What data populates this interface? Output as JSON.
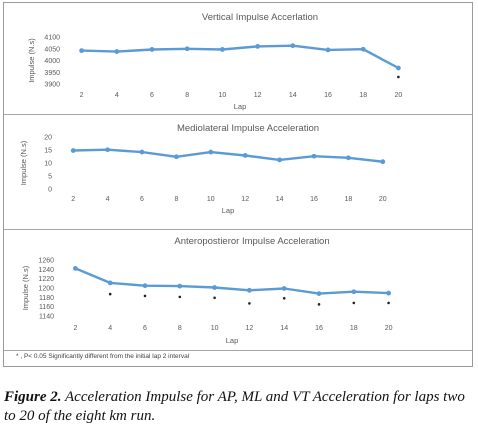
{
  "chart_data": [
    {
      "type": "line",
      "title": "Vertical Impulse Accerlation",
      "ylabel": "Impulse (N.s)",
      "xlabel": "Lap",
      "x": [
        2,
        4,
        6,
        8,
        10,
        12,
        14,
        16,
        18,
        20
      ],
      "y_ticks": [
        3900,
        3950,
        4000,
        4050,
        4100
      ],
      "ylim": [
        3900,
        4100
      ],
      "series": [
        {
          "values": [
            4042,
            4038,
            4047,
            4050,
            4047,
            4060,
            4063,
            4045,
            4048,
            3968
          ],
          "color": "#5b9bd5"
        }
      ],
      "significance_marks": [
        {
          "x": 20,
          "y": 3930
        }
      ]
    },
    {
      "type": "line",
      "title": "Mediolateral Impulse Acceleration",
      "ylabel": "Impulse (N.s)",
      "xlabel": "Lap",
      "x": [
        2,
        4,
        6,
        8,
        10,
        12,
        14,
        16,
        18,
        20
      ],
      "y_ticks": [
        0,
        5,
        10,
        15,
        20
      ],
      "ylim": [
        0,
        20
      ],
      "series": [
        {
          "values": [
            14.8,
            15.1,
            14.2,
            12.4,
            14.2,
            12.9,
            11.2,
            12.6,
            12.0,
            10.5
          ],
          "color": "#5b9bd5"
        }
      ],
      "significance_marks": []
    },
    {
      "type": "line",
      "title": "Anteropostieror Impulse Acceleration",
      "ylabel": "Impulse (N.s)",
      "xlabel": "Lap",
      "x": [
        2,
        4,
        6,
        8,
        10,
        12,
        14,
        16,
        18,
        20
      ],
      "y_ticks": [
        1140,
        1160,
        1180,
        1200,
        1220,
        1240,
        1260
      ],
      "ylim": [
        1140,
        1260
      ],
      "series": [
        {
          "values": [
            1242,
            1211,
            1205,
            1204,
            1201,
            1195,
            1199,
            1188,
            1192,
            1189
          ],
          "color": "#5b9bd5"
        }
      ],
      "significance_marks": [
        {
          "x": 4,
          "y": 1187
        },
        {
          "x": 6,
          "y": 1183
        },
        {
          "x": 8,
          "y": 1181
        },
        {
          "x": 10,
          "y": 1179
        },
        {
          "x": 12,
          "y": 1167
        },
        {
          "x": 14,
          "y": 1178
        },
        {
          "x": 16,
          "y": 1165
        },
        {
          "x": 18,
          "y": 1168
        },
        {
          "x": 20,
          "y": 1168
        }
      ]
    }
  ],
  "footnote": "*  , P< 0.05 Significantly different from the initial lap 2 interval",
  "caption": {
    "label": "Figure 2.",
    "text": " Acceleration Impulse for AP, ML and VT Acceleration for laps two to 20 of the eight km run."
  }
}
